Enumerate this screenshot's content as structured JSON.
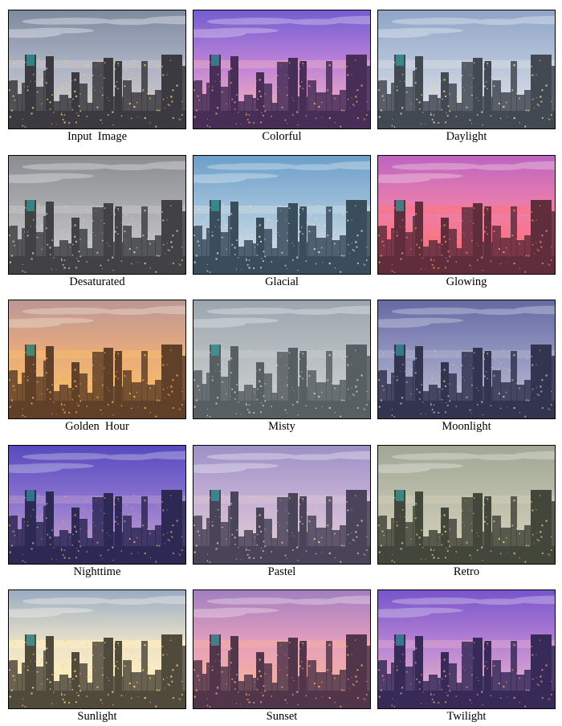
{
  "panels": [
    {
      "label": "Input  Image",
      "sky_top": "#7f8aa0",
      "sky_mid": "#a9b1c2",
      "sky_low": "#c7c5c9",
      "city": "#3a3a40",
      "light": "#f3c77a",
      "tint": "#000000",
      "tint_opacity": 0
    },
    {
      "label": "Colorful",
      "sky_top": "#6f63d8",
      "sky_mid": "#c58ee0",
      "sky_low": "#f2b5cf",
      "city": "#3a2c48",
      "light": "#ffb35e",
      "tint": "#8a3fb0",
      "tint_opacity": 0.15
    },
    {
      "label": "Daylight",
      "sky_top": "#8fa4c6",
      "sky_mid": "#b8c6da",
      "sky_low": "#d9dde3",
      "city": "#3c4048",
      "light": "#f2d79a",
      "tint": "#9db4d6",
      "tint_opacity": 0.08
    },
    {
      "label": "Desaturated",
      "sky_top": "#8d8e93",
      "sky_mid": "#b0b1b5",
      "sky_low": "#c9c9cb",
      "city": "#3b3c3e",
      "light": "#d8d2c4",
      "tint": "#808080",
      "tint_opacity": 0.1
    },
    {
      "label": "Glacial",
      "sky_top": "#6e9fc8",
      "sky_mid": "#a9c6dc",
      "sky_low": "#d4dde4",
      "city": "#35424c",
      "light": "#e3e6dc",
      "tint": "#5f9acb",
      "tint_opacity": 0.12
    },
    {
      "label": "Glowing",
      "sky_top": "#b86bd0",
      "sky_mid": "#f08ab8",
      "sky_low": "#ff7a84",
      "city": "#4a2a36",
      "light": "#ff9a5a",
      "tint": "#e0456a",
      "tint_opacity": 0.15
    },
    {
      "label": "Golden  Hour",
      "sky_top": "#b79aa8",
      "sky_mid": "#eab08a",
      "sky_low": "#f8c378",
      "city": "#4a3328",
      "light": "#ffb145",
      "tint": "#e08a2e",
      "tint_opacity": 0.15
    },
    {
      "label": "Misty",
      "sky_top": "#9aa3ad",
      "sky_mid": "#b8bdc2",
      "sky_low": "#c9ccce",
      "city": "#4a5055",
      "light": "#d7d3c2",
      "tint": "#a9b2b8",
      "tint_opacity": 0.15
    },
    {
      "label": "Moonlight",
      "sky_top": "#6b6fa6",
      "sky_mid": "#9c9fc4",
      "sky_low": "#c0bfd2",
      "city": "#2e2f44",
      "light": "#d9c9a8",
      "tint": "#4a4f98",
      "tint_opacity": 0.15
    },
    {
      "label": "Nighttime",
      "sky_top": "#5c4fc4",
      "sky_mid": "#9a7fd8",
      "sky_low": "#c6a3d8",
      "city": "#2a2644",
      "light": "#f2b16a",
      "tint": "#3f36a8",
      "tint_opacity": 0.18
    },
    {
      "label": "Pastel",
      "sky_top": "#9a8fc6",
      "sky_mid": "#c7b2d6",
      "sky_low": "#dcc7d6",
      "city": "#3e3a4c",
      "light": "#efc79e",
      "tint": "#b49ad0",
      "tint_opacity": 0.1
    },
    {
      "label": "Retro",
      "sky_top": "#a3aa9a",
      "sky_mid": "#c2c4b2",
      "sky_low": "#d6d2bf",
      "city": "#3a3c34",
      "light": "#e8cf8a",
      "tint": "#8a9670",
      "tint_opacity": 0.12
    },
    {
      "label": "Sunlight",
      "sky_top": "#8fa8c8",
      "sky_mid": "#e9e4d0",
      "sky_low": "#fff0c4",
      "city": "#3d3a34",
      "light": "#ffd27a",
      "tint": "#ffd890",
      "tint_opacity": 0.1
    },
    {
      "label": "Sunset",
      "sky_top": "#9b82c6",
      "sky_mid": "#e7a6c2",
      "sky_low": "#f7b8a6",
      "city": "#3f2f40",
      "light": "#ffb070",
      "tint": "#d46a9a",
      "tint_opacity": 0.12
    },
    {
      "label": "Twilight",
      "sky_top": "#7a5ad0",
      "sky_mid": "#c48ed8",
      "sky_low": "#ecb8d8",
      "city": "#2f2746",
      "light": "#f2a86a",
      "tint": "#6a3fb8",
      "tint_opacity": 0.16
    }
  ]
}
